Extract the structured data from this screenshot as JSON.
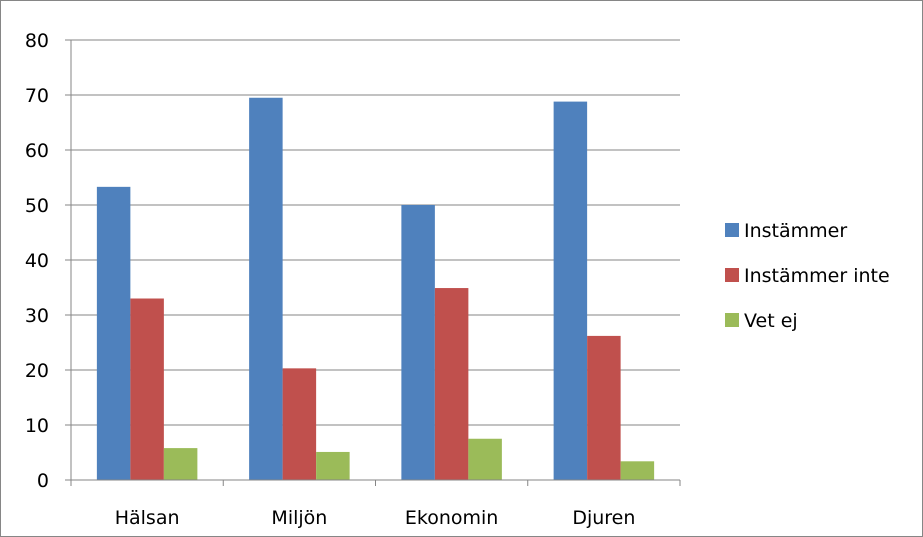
{
  "chart_data": {
    "type": "bar",
    "categories": [
      "Hälsan",
      "Miljön",
      "Ekonomin",
      "Djuren"
    ],
    "series": [
      {
        "name": "Instämmer",
        "values": [
          53.3,
          69.5,
          50.0,
          68.8
        ],
        "color": "#4F81BD"
      },
      {
        "name": "Instämmer inte",
        "values": [
          33.0,
          20.3,
          34.9,
          26.2
        ],
        "color": "#C0504D"
      },
      {
        "name": "Vet ej",
        "values": [
          5.8,
          5.1,
          7.5,
          3.4
        ],
        "color": "#9BBB59"
      }
    ],
    "ylim": [
      0,
      80
    ],
    "yticks": [
      0,
      10,
      20,
      30,
      40,
      50,
      60,
      70,
      80
    ],
    "grid": true,
    "legend_position": "right",
    "title": "",
    "xlabel": "",
    "ylabel": ""
  }
}
